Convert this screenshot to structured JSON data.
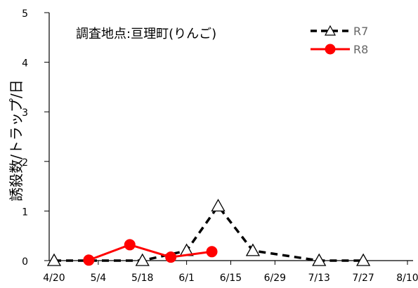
{
  "chart_data": {
    "type": "line",
    "title": "調査地点:亘理町(りんご)",
    "ylabel": "誘殺数/トラップ/日",
    "xlabel": "",
    "ylim": [
      0,
      5
    ],
    "yticks": [
      "0",
      "1",
      "2",
      "3",
      "4",
      "5"
    ],
    "xticks": [
      "4/20",
      "5/4",
      "5/18",
      "6/1",
      "6/15",
      "6/29",
      "7/13",
      "7/27",
      "8/10"
    ],
    "grid": false,
    "legend_position": "top-right",
    "series": [
      {
        "name": "R7",
        "style": "dashed",
        "marker": "triangle-open",
        "color": "#000000",
        "x": [
          "4/20",
          "5/18",
          "6/1",
          "6/11",
          "6/22",
          "7/13",
          "7/27"
        ],
        "values": [
          0,
          0,
          0.2,
          1.1,
          0.2,
          0,
          0
        ]
      },
      {
        "name": "R8",
        "style": "solid",
        "marker": "circle-filled",
        "color": "#ff0000",
        "x": [
          "5/1",
          "5/14",
          "5/27",
          "6/9"
        ],
        "values": [
          0.01,
          0.32,
          0.07,
          0.18
        ]
      }
    ]
  }
}
